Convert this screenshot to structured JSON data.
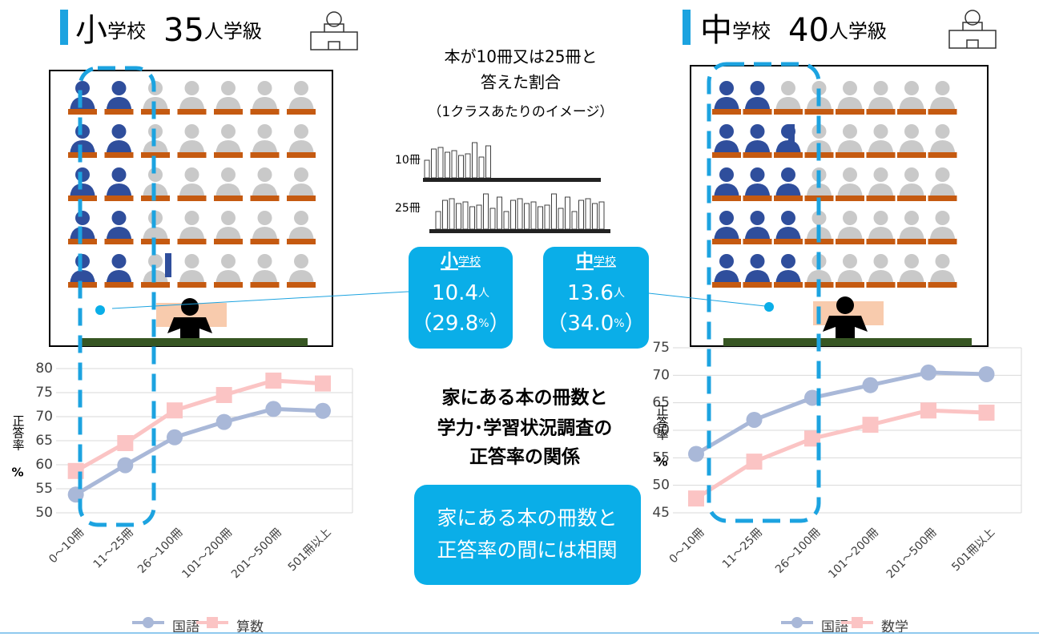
{
  "left_heading": {
    "school": "小",
    "suffix": "学校",
    "size": "35",
    "unit": "人学級"
  },
  "right_heading": {
    "school": "中",
    "suffix": "学校",
    "size": "40",
    "unit": "人学級"
  },
  "center": {
    "lines": [
      "本が10冊又は25冊と",
      "答えた割合",
      "（1クラスあたりのイメージ）"
    ],
    "bar_labels": [
      "10冊",
      "25冊"
    ],
    "boxes": [
      {
        "school": "小",
        "suffix": "学校",
        "count": "10.4",
        "count_unit": "人",
        "open": "（",
        "rate": "29.8",
        "rate_unit": "%",
        "close": "）"
      },
      {
        "school": "中",
        "suffix": "学校",
        "count": "13.6",
        "count_unit": "人",
        "open": "（",
        "rate": "34.0",
        "rate_unit": "%",
        "close": "）"
      }
    ],
    "topic": [
      "家にある本の冊数と",
      "学力･学習状況調査の",
      "正答率の関係"
    ],
    "conclusion": [
      "家にある本の冊数と",
      "正答率の間には相関"
    ]
  },
  "chart_data": [
    {
      "type": "line",
      "ylabel": "正答率",
      "yunit": "%",
      "categories": [
        "0～10冊",
        "11～25冊",
        "26～100冊",
        "101～200冊",
        "201～500冊",
        "501冊以上"
      ],
      "ylim": [
        50,
        80
      ],
      "yticks": [
        50,
        55,
        60,
        65,
        70,
        75,
        80
      ],
      "grid": true,
      "series": [
        {
          "name": "国語",
          "color": "#a9b8d8",
          "marker": "circle",
          "values": [
            53.8,
            59.9,
            65.7,
            68.9,
            71.6,
            71.2
          ]
        },
        {
          "name": "算数",
          "color": "#fbc4c4",
          "marker": "square",
          "values": [
            58.7,
            64.5,
            71.3,
            74.5,
            77.5,
            76.9
          ]
        }
      ]
    },
    {
      "type": "line",
      "ylabel": "正答率",
      "yunit": "%",
      "categories": [
        "0～10冊",
        "11～25冊",
        "26～100冊",
        "101～200冊",
        "201～500冊",
        "501冊以上"
      ],
      "ylim": [
        45,
        75
      ],
      "yticks": [
        45,
        50,
        55,
        60,
        65,
        70,
        75
      ],
      "grid": true,
      "series": [
        {
          "name": "国語",
          "color": "#a9b8d8",
          "marker": "circle",
          "values": [
            55.7,
            61.9,
            65.9,
            68.2,
            70.5,
            70.2
          ]
        },
        {
          "name": "数学",
          "color": "#fbc4c4",
          "marker": "square",
          "values": [
            47.6,
            54.3,
            58.5,
            61.0,
            63.6,
            63.2
          ]
        }
      ]
    }
  ]
}
